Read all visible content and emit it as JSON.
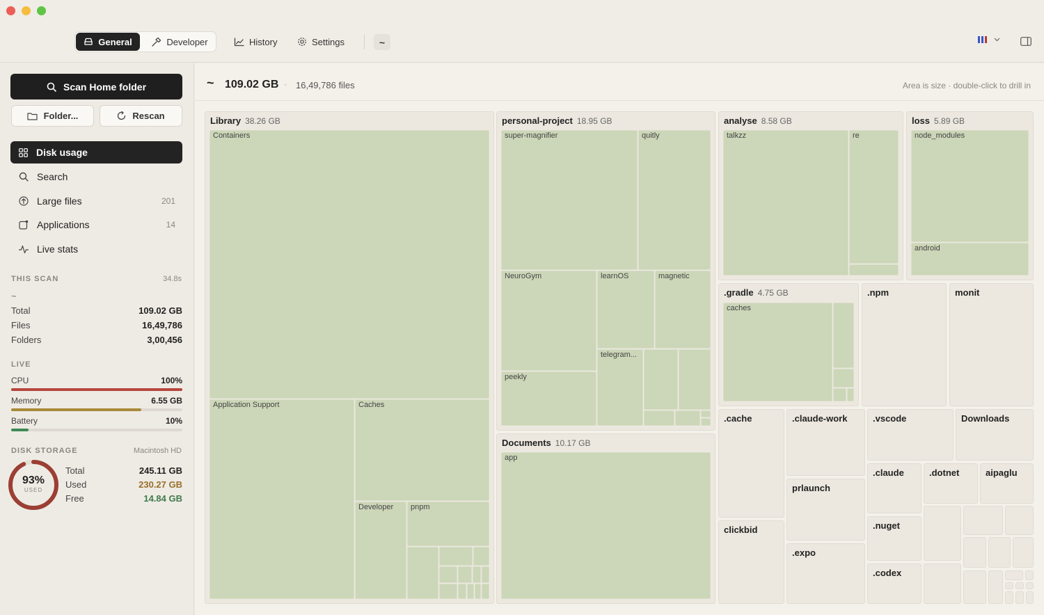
{
  "toolbar": {
    "tabs": [
      {
        "label": "General",
        "icon": "drive-icon"
      },
      {
        "label": "Developer",
        "icon": "hammer-icon"
      }
    ],
    "history_label": "History",
    "settings_label": "Settings",
    "path_label": "~"
  },
  "sidebar": {
    "scan_label": "Scan Home folder",
    "folder_label": "Folder...",
    "rescan_label": "Rescan",
    "nav": [
      {
        "label": "Disk usage",
        "count": "",
        "active": true
      },
      {
        "label": "Search",
        "count": ""
      },
      {
        "label": "Large files",
        "count": "201"
      },
      {
        "label": "Applications",
        "count": "14"
      },
      {
        "label": "Live stats",
        "count": ""
      }
    ],
    "this_scan": {
      "title": "THIS SCAN",
      "duration": "34.8s",
      "path": "~",
      "rows": [
        {
          "label": "Total",
          "value": "109.02 GB"
        },
        {
          "label": "Files",
          "value": "16,49,786"
        },
        {
          "label": "Folders",
          "value": "3,00,456"
        }
      ]
    },
    "live": {
      "title": "LIVE",
      "rows": [
        {
          "label": "CPU",
          "value": "100%",
          "fraction": 1.0,
          "color": "#b7453f"
        },
        {
          "label": "Memory",
          "value": "6.55 GB",
          "fraction": 0.76,
          "color": "#a98a3a"
        },
        {
          "label": "Battery",
          "value": "10%",
          "fraction": 0.1,
          "color": "#3f8a55"
        }
      ]
    },
    "disk": {
      "title": "DISK STORAGE",
      "volume": "Macintosh HD",
      "percent": "93%",
      "used_caption": "USED",
      "fraction": 0.93,
      "rows": [
        {
          "label": "Total",
          "value": "245.11 GB",
          "color": "#222222"
        },
        {
          "label": "Used",
          "value": "230.27 GB",
          "color": "#9a6f2a"
        },
        {
          "label": "Free",
          "value": "14.84 GB",
          "color": "#3f7a4a"
        }
      ]
    }
  },
  "main": {
    "path": "~",
    "total": "109.02 GB",
    "separator": "·",
    "files": "16,49,786 files",
    "hint": "Area is size · double-click to drill in"
  },
  "treemap": {
    "groups": [
      {
        "name": "Library",
        "size": "38.26 GB",
        "children": [
          "Containers",
          "Application Support",
          "Caches",
          "Developer",
          "pnpm"
        ]
      },
      {
        "name": "personal-project",
        "size": "18.95 GB",
        "children": [
          "super-magnifier",
          "quitly",
          "NeuroGym",
          "learnOS",
          "magnetic",
          "peekly",
          "telegram..."
        ]
      },
      {
        "name": "Documents",
        "size": "10.17 GB",
        "children": [
          "app"
        ]
      },
      {
        "name": "analyse",
        "size": "8.58 GB",
        "children": [
          "talkzz",
          "re"
        ]
      },
      {
        "name": "loss",
        "size": "5.89 GB",
        "children": [
          "node_modules",
          "android"
        ]
      },
      {
        "name": ".gradle",
        "size": "4.75 GB",
        "children": [
          "caches"
        ]
      }
    ],
    "folders": [
      ".npm",
      "monit",
      ".cache",
      ".claude-work",
      ".vscode",
      "Downloads",
      "prlaunch",
      ".claude",
      ".dotnet",
      "aipaglu",
      "clickbid",
      ".nuget",
      ".expo",
      ".codex"
    ]
  }
}
